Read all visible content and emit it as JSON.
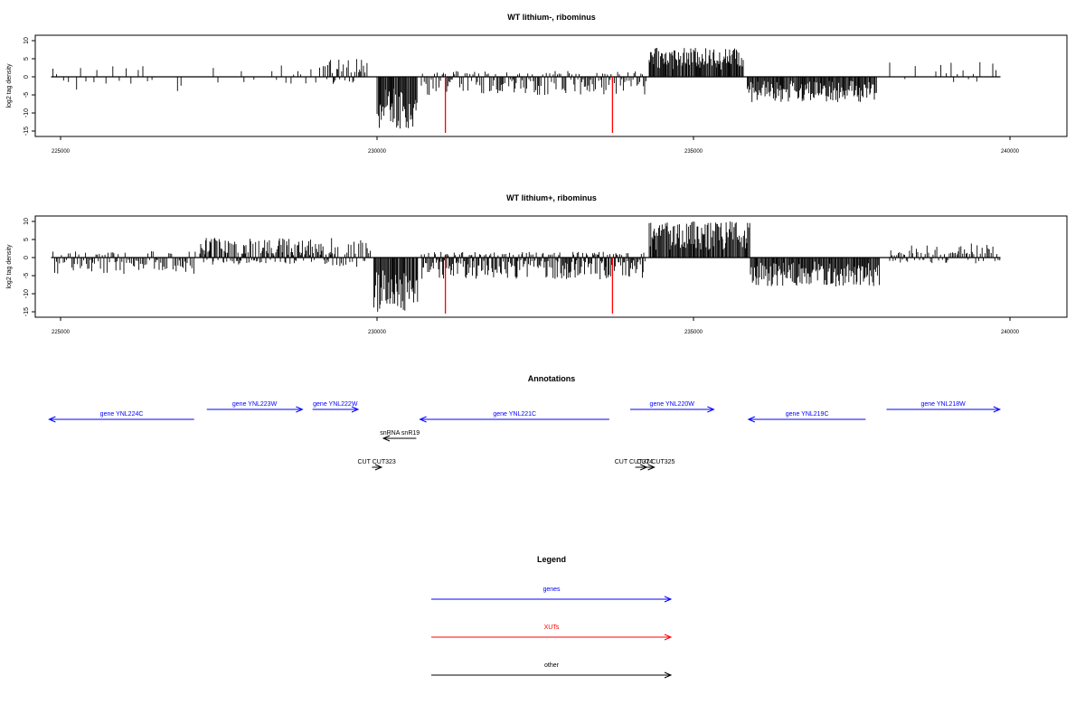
{
  "panels": [
    {
      "title": "WT lithium-, ribominus",
      "ylabel": "log2 tag density",
      "xlim": [
        224600,
        240900
      ],
      "ylim": [
        -16.5,
        11.5
      ],
      "yticks": [
        10,
        5,
        0,
        -5,
        -10,
        -15
      ],
      "ytick_labels": [
        "10",
        "5",
        "0",
        "-5",
        "-10",
        "-15"
      ],
      "xticks": [
        225000,
        230000,
        235000,
        240000
      ],
      "xtick_labels": [
        "225000",
        "230000",
        "235000",
        "240000"
      ]
    },
    {
      "title": "WT lithium+, ribominus",
      "ylabel": "log2 tag density",
      "xlim": [
        224600,
        240900
      ],
      "ylim": [
        -16.5,
        11.5
      ],
      "yticks": [
        10,
        5,
        0,
        -5,
        -10,
        -15
      ],
      "ytick_labels": [
        "10",
        "5",
        "0",
        "-5",
        "-10",
        "-15"
      ],
      "xticks": [
        225000,
        230000,
        235000,
        240000
      ],
      "xtick_labels": [
        "225000",
        "230000",
        "235000",
        "240000"
      ]
    }
  ],
  "chart_data": [
    {
      "type": "bar",
      "title": "WT lithium-, ribominus",
      "ylabel": "log2 tag density",
      "xlim": [
        224600,
        240900
      ],
      "ylim": [
        -16.5,
        11.5
      ],
      "grid": false,
      "baseline_x": [
        224850,
        239850
      ],
      "xut_markers": [
        {
          "x": 231080,
          "y": -15.5,
          "color": "#ff0000"
        },
        {
          "x": 233720,
          "y": -15.5,
          "color": "#ff0000"
        }
      ],
      "segments": [
        {
          "x0": 224880,
          "x1": 226930,
          "min": -4,
          "max": 3,
          "density": "sparse",
          "bias": "negative"
        },
        {
          "x0": 227350,
          "x1": 229150,
          "min": -2,
          "max": 4,
          "density": "sparse",
          "bias": "positive"
        },
        {
          "x0": 229150,
          "x1": 229850,
          "min": -2,
          "max": 5,
          "density": "medium",
          "bias": "positive"
        },
        {
          "x0": 230000,
          "x1": 230650,
          "min": -14.5,
          "max": -3,
          "density": "dense"
        },
        {
          "x0": 230700,
          "x1": 234250,
          "min": -5,
          "max": 1,
          "density": "medium",
          "bias": "negative"
        },
        {
          "x0": 234300,
          "x1": 235800,
          "min": 2,
          "max": 8,
          "density": "dense"
        },
        {
          "x0": 235850,
          "x1": 237900,
          "min": -7,
          "max": -1,
          "density": "dense"
        },
        {
          "x0": 238100,
          "x1": 239850,
          "min": -1,
          "max": 4.5,
          "density": "sparse",
          "bias": "positive"
        }
      ]
    },
    {
      "type": "bar",
      "title": "WT lithium+, ribominus",
      "ylabel": "log2 tag density",
      "xlim": [
        224600,
        240900
      ],
      "ylim": [
        -16.5,
        11.5
      ],
      "grid": false,
      "baseline_x": [
        224850,
        239850
      ],
      "xut_markers": [
        {
          "x": 231080,
          "y": -15.5,
          "color": "#ff0000"
        },
        {
          "x": 233720,
          "y": -15.5,
          "color": "#ff0000"
        }
      ],
      "segments": [
        {
          "x0": 224880,
          "x1": 227150,
          "min": -4.5,
          "max": 2,
          "density": "medium",
          "bias": "negative"
        },
        {
          "x0": 227200,
          "x1": 229300,
          "min": -2,
          "max": 5.5,
          "density": "dense",
          "bias": "positive"
        },
        {
          "x0": 229300,
          "x1": 229900,
          "min": -3,
          "max": 5,
          "density": "medium",
          "bias": "positive"
        },
        {
          "x0": 229950,
          "x1": 230650,
          "min": -15.5,
          "max": -3,
          "density": "dense"
        },
        {
          "x0": 230700,
          "x1": 234250,
          "min": -6,
          "max": 1,
          "density": "dense",
          "bias": "negative"
        },
        {
          "x0": 234300,
          "x1": 235900,
          "min": 2,
          "max": 10,
          "density": "dense"
        },
        {
          "x0": 235900,
          "x1": 237950,
          "min": -8,
          "max": -1,
          "density": "dense"
        },
        {
          "x0": 238100,
          "x1": 239850,
          "min": -1,
          "max": 4,
          "density": "medium",
          "bias": "positive"
        }
      ]
    }
  ],
  "annotations": {
    "title": "Annotations",
    "xlim": [
      224600,
      240900
    ],
    "features": [
      {
        "label": "gene YNL224C",
        "x_start": 224820,
        "x_end": 227110,
        "strand": "-",
        "category": "gene",
        "row": 1
      },
      {
        "label": "gene YNL223W",
        "x_start": 227310,
        "x_end": 228820,
        "strand": "+",
        "category": "gene",
        "row": 0
      },
      {
        "label": "gene YNL222W",
        "x_start": 228980,
        "x_end": 229700,
        "strand": "+",
        "category": "gene",
        "row": 0
      },
      {
        "label": "gene YNL221C",
        "x_start": 230680,
        "x_end": 233670,
        "strand": "-",
        "category": "gene",
        "row": 1
      },
      {
        "label": "gene YNL220W",
        "x_start": 234000,
        "x_end": 235320,
        "strand": "+",
        "category": "gene",
        "row": 0
      },
      {
        "label": "gene YNL219C",
        "x_start": 235870,
        "x_end": 237720,
        "strand": "-",
        "category": "gene",
        "row": 1
      },
      {
        "label": "gene YNL218W",
        "x_start": 238050,
        "x_end": 239840,
        "strand": "+",
        "category": "gene",
        "row": 0
      },
      {
        "label": "snRNA snR19",
        "x_start": 230100,
        "x_end": 230620,
        "strand": "-",
        "category": "other",
        "row": 2
      },
      {
        "label": "CUT CUT323",
        "x_start": 229920,
        "x_end": 230070,
        "strand": "+",
        "category": "other",
        "row": 3
      },
      {
        "label": "CUT CUT324",
        "x_start": 234080,
        "x_end": 234260,
        "strand": "+",
        "category": "other",
        "row": 3
      },
      {
        "label": "CUT CUT325",
        "x_start": 234200,
        "x_end": 234380,
        "strand": "+",
        "category": "other",
        "row": 3
      }
    ]
  },
  "legend": {
    "title": "Legend",
    "items": [
      {
        "label": "genes",
        "color": "#0000ff"
      },
      {
        "label": "XUTs",
        "color": "#ff0000"
      },
      {
        "label": "other",
        "color": "#000000"
      }
    ]
  },
  "colors": {
    "gene": "#0000ff",
    "xut": "#ff0000",
    "other": "#000000",
    "signal": "#000000",
    "axis": "#000000"
  }
}
